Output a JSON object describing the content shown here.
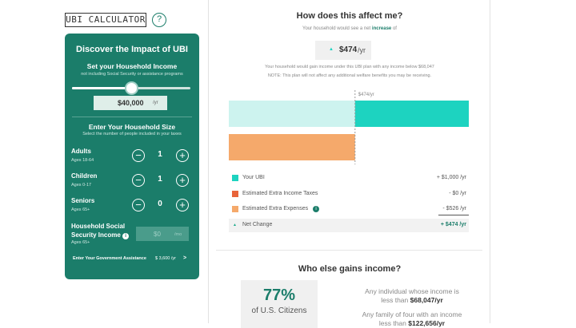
{
  "header": {
    "logo": "UBI CALCULATOR",
    "help": "?"
  },
  "calculator": {
    "title": "Discover the Impact of UBI",
    "income": {
      "heading": "Set your Household Income",
      "subheading": "not including Social Security or assistance programs",
      "amount": "$40,000",
      "unit": "/yr"
    },
    "household": {
      "heading": "Enter Your Household Size",
      "subheading": "Select the number of people included in your taxes",
      "rows": [
        {
          "label": "Adults",
          "ages": "Ages 18-64",
          "count": 1
        },
        {
          "label": "Children",
          "ages": "Ages 0-17",
          "count": 1
        },
        {
          "label": "Seniors",
          "ages": "Ages 65+",
          "count": 0
        }
      ]
    },
    "social_security": {
      "label": "Household Social Security Income",
      "info": "i",
      "ages": "Ages 65+",
      "amount": "$0",
      "unit": "/mo"
    },
    "assistance": {
      "label": "Enter Your Government Assistance",
      "amount": "$ 3,600 /yr",
      "arrow": ">"
    }
  },
  "effect": {
    "title": "How does this affect me?",
    "sentence": [
      "Your household would see a net",
      "increase",
      "of"
    ],
    "net_amount": "$474",
    "net_unit": "/yr",
    "note1": "Your household would gain income under this UBI plan with any income below $68,047",
    "note2": "NOTE: This plan will not affect any additional welfare benefits you may be receiving.",
    "chart_label": "$474/yr",
    "items": [
      {
        "name": "Your UBI",
        "value": 1000,
        "value_label": "+ $1,000 /yr",
        "color": "#1dd3c0"
      },
      {
        "name": "Estimated Extra Income Taxes",
        "value": 0,
        "value_label": "- $0 /yr",
        "color": "#e8643a"
      },
      {
        "name": "Estimated Extra Expenses",
        "value": 526,
        "value_label": "- $526 /yr",
        "color": "#f5a96b"
      },
      {
        "name": "Net Change",
        "value": 474,
        "value_label": "+ $474 /yr",
        "color": "#1aa98a"
      }
    ]
  },
  "others": {
    "title": "Who else gains income?",
    "percent": "77%",
    "percent_label": "of U.S. Citizens",
    "facts": [
      {
        "text": "Any individual whose income is less than",
        "amount": "$68,047/yr"
      },
      {
        "text": "Any family of four with an income less than",
        "amount": "$122,656/yr"
      }
    ]
  }
}
